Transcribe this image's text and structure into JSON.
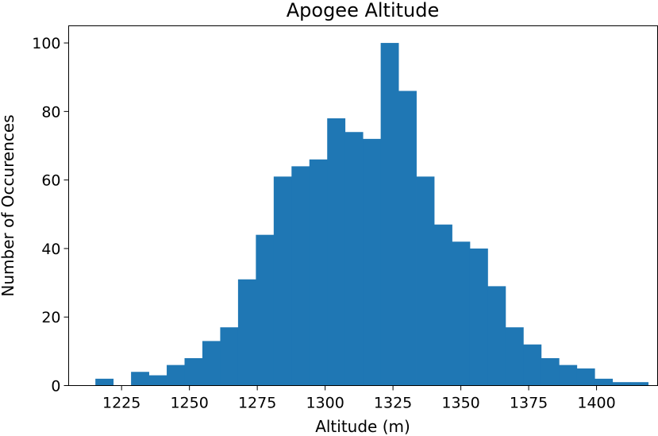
{
  "chart_data": {
    "type": "bar",
    "title": "Apogee Altitude",
    "xlabel": "Altitude (m)",
    "ylabel": "Number of Occurences",
    "bar_color": "#1f77b4",
    "xlim": [
      1205.5,
      1422.5
    ],
    "ylim": [
      0,
      105
    ],
    "grid": false,
    "bin_width": 6.57,
    "bin_start": 1215.35,
    "counts": [
      2,
      0,
      4,
      3,
      6,
      8,
      13,
      17,
      31,
      44,
      61,
      64,
      66,
      78,
      74,
      72,
      100,
      86,
      61,
      47,
      42,
      40,
      29,
      17,
      12,
      8,
      6,
      5,
      2,
      1,
      1
    ],
    "xticks": [
      1225,
      1250,
      1275,
      1300,
      1325,
      1350,
      1375,
      1400
    ],
    "xtick_labels": [
      "1225",
      "1250",
      "1275",
      "1300",
      "1325",
      "1350",
      "1375",
      "1400"
    ],
    "yticks": [
      0,
      20,
      40,
      60,
      80,
      100
    ],
    "ytick_labels": [
      "0",
      "20",
      "40",
      "60",
      "80",
      "100"
    ]
  }
}
